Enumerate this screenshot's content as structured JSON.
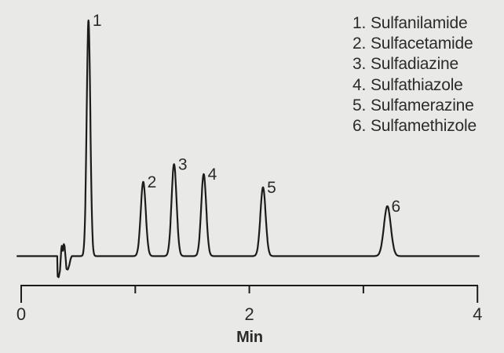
{
  "figure": {
    "background_color": "#e9e9e7",
    "trace_color": "#1c1c1c",
    "text_color": "#2b2b2b"
  },
  "legend": {
    "items": [
      {
        "number": "1.",
        "name": "Sulfanilamide"
      },
      {
        "number": "2.",
        "name": "Sulfacetamide"
      },
      {
        "number": "3.",
        "name": "Sulfadiazine"
      },
      {
        "number": "4.",
        "name": "Sulfathiazole"
      },
      {
        "number": "5.",
        "name": "Sulfamerazine"
      },
      {
        "number": "6.",
        "name": "Sulfamethizole"
      }
    ]
  },
  "axis": {
    "label": "Min",
    "range": [
      0,
      4
    ],
    "ticks": [
      {
        "value": 0,
        "label": "0",
        "major": true
      },
      {
        "value": 1,
        "label": "",
        "major": false
      },
      {
        "value": 2,
        "label": "2",
        "major": false
      },
      {
        "value": 3,
        "label": "",
        "major": false
      },
      {
        "value": 4,
        "label": "4",
        "major": true
      }
    ]
  },
  "chart_data": {
    "type": "line",
    "xlabel": "Min",
    "ylabel": "",
    "x_range": [
      0,
      4
    ],
    "grid": false,
    "legend_position": "top-right",
    "baseline": 0,
    "peaks": [
      {
        "number": 1,
        "compound": "Sulfanilamide",
        "retention_time_min": 0.59,
        "relative_height": 1.0,
        "sigma_min": 0.016
      },
      {
        "number": 2,
        "compound": "Sulfacetamide",
        "retention_time_min": 1.07,
        "relative_height": 0.315,
        "sigma_min": 0.022
      },
      {
        "number": 3,
        "compound": "Sulfadiazine",
        "retention_time_min": 1.34,
        "relative_height": 0.39,
        "sigma_min": 0.022
      },
      {
        "number": 4,
        "compound": "Sulfathiazole",
        "retention_time_min": 1.6,
        "relative_height": 0.348,
        "sigma_min": 0.022
      },
      {
        "number": 5,
        "compound": "Sulfamerazine",
        "retention_time_min": 2.12,
        "relative_height": 0.292,
        "sigma_min": 0.023
      },
      {
        "number": 6,
        "compound": "Sulfamethizole",
        "retention_time_min": 3.21,
        "relative_height": 0.212,
        "sigma_min": 0.03
      }
    ],
    "solvent_front_trace": [
      [
        0.316,
        0
      ],
      [
        0.319,
        -0.086
      ],
      [
        0.329,
        -0.09
      ],
      [
        0.34,
        -0.062
      ],
      [
        0.351,
        0.028
      ],
      [
        0.357,
        0.047
      ],
      [
        0.365,
        0.019
      ],
      [
        0.373,
        0.052
      ],
      [
        0.38,
        0.044
      ],
      [
        0.39,
        -0.012
      ],
      [
        0.397,
        -0.055
      ],
      [
        0.409,
        -0.057
      ],
      [
        0.421,
        -0.04
      ],
      [
        0.433,
        -0.012
      ],
      [
        0.444,
        0
      ]
    ]
  }
}
